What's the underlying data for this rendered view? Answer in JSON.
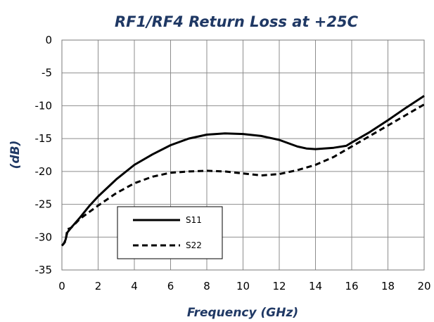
{
  "chart_data": {
    "type": "line",
    "title": "RF1/RF4 Return Loss at +25C",
    "xlabel": "Frequency (GHz)",
    "ylabel": "(dB)",
    "xlim": [
      0,
      20
    ],
    "ylim": [
      -35,
      0
    ],
    "x_ticks": [
      "0",
      "2",
      "4",
      "6",
      "8",
      "10",
      "12",
      "14",
      "16",
      "18",
      "20"
    ],
    "y_ticks": [
      "0",
      "-5",
      "-10",
      "-15",
      "-20",
      "-25",
      "-30",
      "-35"
    ],
    "grid": true,
    "legend_position": "bottom-left",
    "series": [
      {
        "name": "S11",
        "style": "solid",
        "color": "#000000",
        "points": [
          [
            0,
            -31.3
          ],
          [
            0.1,
            -31.0
          ],
          [
            0.2,
            -30.4
          ],
          [
            0.3,
            -29.3
          ],
          [
            0.5,
            -28.6
          ],
          [
            1,
            -27.0
          ],
          [
            1.5,
            -25.3
          ],
          [
            2,
            -23.8
          ],
          [
            3,
            -21.2
          ],
          [
            4,
            -19.0
          ],
          [
            5,
            -17.4
          ],
          [
            6,
            -16.0
          ],
          [
            7,
            -15.0
          ],
          [
            8,
            -14.4
          ],
          [
            9,
            -14.2
          ],
          [
            10,
            -14.3
          ],
          [
            11,
            -14.6
          ],
          [
            12,
            -15.2
          ],
          [
            13,
            -16.2
          ],
          [
            13.5,
            -16.5
          ],
          [
            14,
            -16.6
          ],
          [
            15,
            -16.4
          ],
          [
            15.7,
            -16.1
          ],
          [
            16,
            -15.6
          ],
          [
            17,
            -14.0
          ],
          [
            18,
            -12.2
          ],
          [
            19,
            -10.3
          ],
          [
            20,
            -8.5
          ]
        ]
      },
      {
        "name": "S22",
        "style": "dashed",
        "color": "#000000",
        "points": [
          [
            0,
            -31.3
          ],
          [
            0.1,
            -31.0
          ],
          [
            0.2,
            -30.6
          ],
          [
            0.3,
            -28.8
          ],
          [
            0.5,
            -28.6
          ],
          [
            1,
            -27.2
          ],
          [
            2,
            -25.2
          ],
          [
            3,
            -23.3
          ],
          [
            4,
            -21.8
          ],
          [
            5,
            -20.8
          ],
          [
            6,
            -20.2
          ],
          [
            7,
            -20.0
          ],
          [
            8,
            -19.9
          ],
          [
            9,
            -20.0
          ],
          [
            10,
            -20.3
          ],
          [
            11,
            -20.6
          ],
          [
            12,
            -20.4
          ],
          [
            13,
            -19.8
          ],
          [
            14,
            -19.0
          ],
          [
            15,
            -17.8
          ],
          [
            16,
            -16.2
          ],
          [
            17,
            -14.6
          ],
          [
            18,
            -13.0
          ],
          [
            19,
            -11.4
          ],
          [
            20,
            -9.8
          ]
        ]
      }
    ]
  }
}
